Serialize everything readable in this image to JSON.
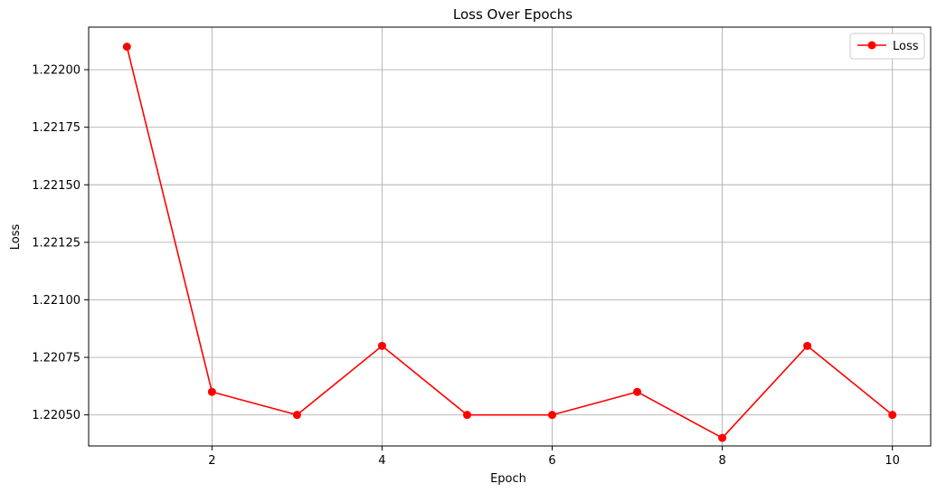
{
  "chart_data": {
    "type": "line",
    "title": "Loss Over Epochs",
    "xlabel": "Epoch",
    "ylabel": "Loss",
    "xlim": [
      0.55,
      10.45
    ],
    "ylim": [
      1.220365,
      1.222185
    ],
    "xticks": [
      2,
      4,
      6,
      8,
      10
    ],
    "yticks": [
      1.2205,
      1.22075,
      1.221,
      1.22125,
      1.2215,
      1.22175,
      1.222
    ],
    "ytick_labels": [
      "1.22050",
      "1.22075",
      "1.22100",
      "1.22125",
      "1.22150",
      "1.22175",
      "1.22200"
    ],
    "grid": true,
    "legend_position": "top-right",
    "series": [
      {
        "name": "Loss",
        "color": "#ff0000",
        "marker": "circle",
        "x": [
          1,
          2,
          3,
          4,
          5,
          6,
          7,
          8,
          9,
          10
        ],
        "y": [
          1.2221,
          1.2206,
          1.2205,
          1.2208,
          1.2205,
          1.2205,
          1.2206,
          1.2204,
          1.2208,
          1.2205
        ]
      }
    ]
  }
}
